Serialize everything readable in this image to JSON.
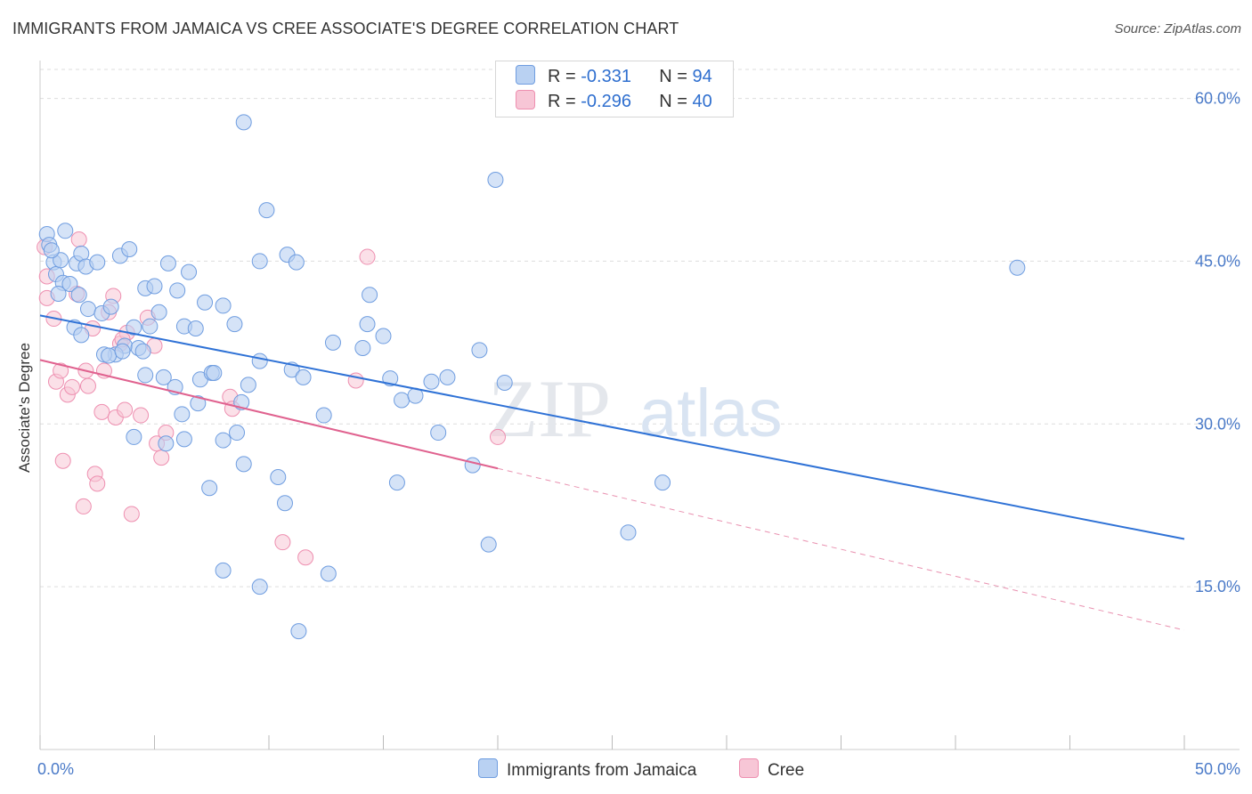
{
  "title": "IMMIGRANTS FROM JAMAICA VS CREE ASSOCIATE'S DEGREE CORRELATION CHART",
  "source": "Source: ZipAtlas.com",
  "watermark": {
    "part1": "ZIP",
    "part2": "atlas"
  },
  "colors": {
    "jamaica_fill": "#b9d1f2",
    "jamaica_stroke": "#6f9de0",
    "jamaica_line": "#2f72d6",
    "cree_fill": "#f7c6d6",
    "cree_stroke": "#ee8fb0",
    "cree_line": "#e0628f",
    "grid": "#dddddd",
    "tick_text": "#4a7ac8"
  },
  "legend": {
    "rows": [
      {
        "r_label": "R = ",
        "r_value": "-0.331",
        "n_label": "N = ",
        "n_value": "94"
      },
      {
        "r_label": "R = ",
        "r_value": "-0.296",
        "n_label": "N = ",
        "n_value": "40"
      }
    ]
  },
  "chart_data": {
    "type": "scatter",
    "title": "IMMIGRANTS FROM JAMAICA VS CREE ASSOCIATE'S DEGREE CORRELATION CHART",
    "xlabel": "",
    "ylabel": "Associate's Degree",
    "xlim": [
      0,
      50
    ],
    "ylim": [
      0,
      63
    ],
    "x_tick_labels": [
      "0.0%",
      "50.0%"
    ],
    "y_ticks": [
      15,
      30,
      45,
      60
    ],
    "y_tick_labels": [
      "15.0%",
      "30.0%",
      "45.0%",
      "60.0%"
    ],
    "grid": true,
    "legend_position": "top-center",
    "series": [
      {
        "name": "Immigrants from Jamaica",
        "r": -0.331,
        "n": 94,
        "trend": {
          "x": [
            0,
            50
          ],
          "y": [
            40.0,
            19.4
          ]
        },
        "points": [
          [
            0.3,
            47.5
          ],
          [
            0.4,
            46.5
          ],
          [
            0.6,
            44.9
          ],
          [
            0.7,
            43.8
          ],
          [
            0.9,
            45.1
          ],
          [
            1.0,
            43.0
          ],
          [
            1.1,
            47.8
          ],
          [
            0.8,
            42.0
          ],
          [
            1.3,
            42.9
          ],
          [
            1.6,
            44.8
          ],
          [
            1.8,
            45.7
          ],
          [
            2.0,
            44.5
          ],
          [
            2.5,
            44.9
          ],
          [
            3.5,
            45.5
          ],
          [
            3.9,
            46.1
          ],
          [
            1.7,
            41.9
          ],
          [
            2.1,
            40.6
          ],
          [
            1.5,
            38.9
          ],
          [
            1.8,
            38.2
          ],
          [
            2.7,
            40.2
          ],
          [
            3.1,
            40.8
          ],
          [
            4.1,
            38.9
          ],
          [
            4.6,
            42.5
          ],
          [
            5.2,
            40.3
          ],
          [
            5.0,
            42.7
          ],
          [
            5.6,
            44.8
          ],
          [
            6.0,
            42.3
          ],
          [
            6.5,
            44.0
          ],
          [
            6.3,
            39.0
          ],
          [
            6.8,
            38.8
          ],
          [
            7.2,
            41.2
          ],
          [
            8.0,
            40.9
          ],
          [
            8.5,
            39.2
          ],
          [
            8.9,
            57.8
          ],
          [
            9.6,
            45.0
          ],
          [
            9.9,
            49.7
          ],
          [
            10.8,
            45.6
          ],
          [
            11.2,
            44.9
          ],
          [
            3.7,
            37.2
          ],
          [
            3.3,
            36.4
          ],
          [
            2.8,
            36.4
          ],
          [
            3.0,
            36.3
          ],
          [
            3.6,
            36.7
          ],
          [
            4.3,
            37.0
          ],
          [
            4.5,
            36.7
          ],
          [
            4.8,
            39.0
          ],
          [
            5.4,
            34.3
          ],
          [
            4.6,
            34.5
          ],
          [
            5.9,
            33.4
          ],
          [
            5.5,
            28.2
          ],
          [
            6.3,
            28.6
          ],
          [
            6.9,
            31.9
          ],
          [
            7.0,
            34.1
          ],
          [
            7.5,
            34.7
          ],
          [
            7.6,
            34.7
          ],
          [
            8.0,
            28.5
          ],
          [
            8.8,
            32.0
          ],
          [
            8.6,
            29.2
          ],
          [
            8.9,
            26.3
          ],
          [
            9.6,
            35.8
          ],
          [
            10.4,
            25.1
          ],
          [
            10.7,
            22.7
          ],
          [
            11.0,
            35.0
          ],
          [
            11.5,
            34.3
          ],
          [
            12.4,
            30.8
          ],
          [
            12.8,
            37.5
          ],
          [
            14.1,
            37.0
          ],
          [
            14.3,
            39.2
          ],
          [
            14.4,
            41.9
          ],
          [
            15.0,
            38.1
          ],
          [
            15.3,
            34.2
          ],
          [
            15.8,
            32.2
          ],
          [
            16.4,
            32.6
          ],
          [
            17.1,
            33.9
          ],
          [
            17.4,
            29.2
          ],
          [
            17.8,
            34.3
          ],
          [
            18.9,
            26.2
          ],
          [
            19.2,
            36.8
          ],
          [
            19.6,
            18.9
          ],
          [
            19.9,
            52.5
          ],
          [
            20.3,
            33.8
          ],
          [
            15.6,
            24.6
          ],
          [
            8.0,
            16.5
          ],
          [
            9.6,
            15.0
          ],
          [
            12.6,
            16.2
          ],
          [
            11.3,
            10.9
          ],
          [
            25.7,
            20.0
          ],
          [
            27.2,
            24.6
          ],
          [
            42.7,
            44.4
          ],
          [
            4.1,
            28.8
          ],
          [
            6.2,
            30.9
          ],
          [
            7.4,
            24.1
          ],
          [
            9.1,
            33.6
          ],
          [
            0.5,
            46.0
          ]
        ]
      },
      {
        "name": "Cree",
        "r": -0.296,
        "n": 40,
        "trend": {
          "x": [
            0,
            20
          ],
          "y": [
            35.9,
            25.9
          ]
        },
        "trend_dashed": {
          "x": [
            20,
            50
          ],
          "y": [
            25.9,
            11.0
          ]
        },
        "points": [
          [
            0.2,
            46.3
          ],
          [
            0.3,
            43.6
          ],
          [
            0.3,
            41.6
          ],
          [
            0.6,
            39.7
          ],
          [
            0.7,
            33.9
          ],
          [
            0.9,
            34.9
          ],
          [
            1.0,
            26.6
          ],
          [
            1.2,
            32.7
          ],
          [
            1.4,
            33.4
          ],
          [
            1.6,
            42.0
          ],
          [
            1.7,
            47.0
          ],
          [
            1.9,
            22.4
          ],
          [
            2.0,
            34.9
          ],
          [
            2.1,
            33.5
          ],
          [
            2.3,
            38.8
          ],
          [
            2.4,
            25.4
          ],
          [
            2.5,
            24.5
          ],
          [
            2.7,
            31.1
          ],
          [
            2.8,
            34.9
          ],
          [
            3.0,
            40.3
          ],
          [
            3.2,
            41.8
          ],
          [
            3.3,
            30.6
          ],
          [
            3.5,
            37.4
          ],
          [
            3.7,
            31.3
          ],
          [
            3.8,
            38.4
          ],
          [
            4.0,
            21.7
          ],
          [
            4.4,
            30.8
          ],
          [
            4.7,
            39.8
          ],
          [
            5.1,
            28.2
          ],
          [
            5.3,
            26.9
          ],
          [
            5.5,
            29.2
          ],
          [
            5.0,
            37.2
          ],
          [
            8.3,
            32.5
          ],
          [
            8.4,
            31.4
          ],
          [
            10.6,
            19.1
          ],
          [
            11.6,
            17.7
          ],
          [
            13.8,
            34.0
          ],
          [
            14.3,
            45.4
          ],
          [
            20.0,
            28.8
          ],
          [
            3.6,
            37.8
          ]
        ]
      }
    ]
  }
}
